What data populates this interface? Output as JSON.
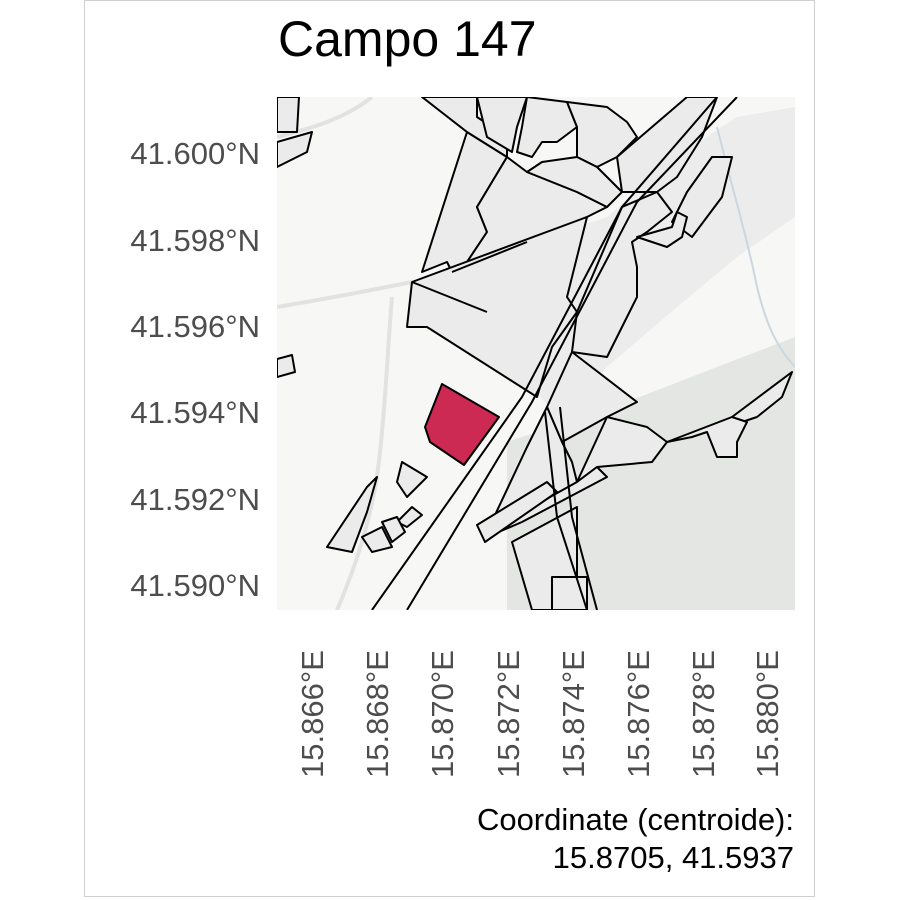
{
  "title": "Campo 147",
  "map": {
    "highlight_color": "#cc2a52",
    "axis_y": {
      "labels": [
        "41.600°N",
        "41.598°N",
        "41.596°N",
        "41.594°N",
        "41.592°N",
        "41.590°N"
      ]
    },
    "axis_x": {
      "labels": [
        "15.866°E",
        "15.868°E",
        "15.870°E",
        "15.872°E",
        "15.874°E",
        "15.876°E",
        "15.878°E",
        "15.880°E"
      ]
    }
  },
  "caption": {
    "line1": "Coordinate (centroide):",
    "line2": "15.8705, 41.5937"
  }
}
